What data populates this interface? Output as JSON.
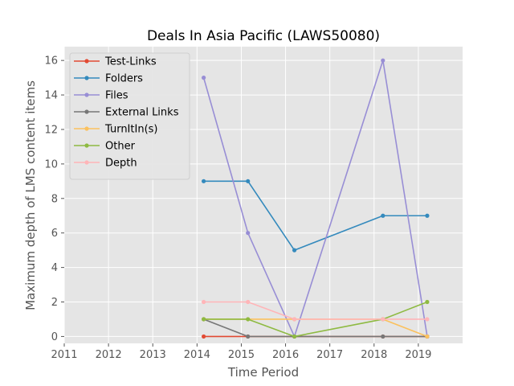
{
  "chart_data": {
    "type": "line",
    "title": "Deals In Asia Pacific (LAWS50080)",
    "xlabel": "Time Period",
    "ylabel": "Maximum depth of LMS content items",
    "xlim": [
      2011,
      2020
    ],
    "ylim": [
      -0.4,
      16.8
    ],
    "xticks": [
      "2011",
      "2012",
      "2013",
      "2014",
      "2015",
      "2016",
      "2017",
      "2018",
      "2019"
    ],
    "yticks": [
      "0",
      "2",
      "4",
      "6",
      "8",
      "10",
      "12",
      "14",
      "16"
    ],
    "grid": true,
    "legend_position": "top-left",
    "x": [
      2014.15,
      2015.15,
      2016.2,
      2018.2,
      2019.2
    ],
    "series": [
      {
        "name": "Test-Links",
        "color": "#E24A33",
        "points": [
          [
            2014.15,
            0
          ],
          [
            2015.15,
            0
          ],
          [
            2016.2,
            0
          ],
          [
            2018.2,
            0
          ],
          [
            2019.2,
            0
          ]
        ]
      },
      {
        "name": "Folders",
        "color": "#348ABD",
        "points": [
          [
            2014.15,
            9
          ],
          [
            2015.15,
            9
          ],
          [
            2016.2,
            5
          ],
          [
            2018.2,
            7
          ],
          [
            2019.2,
            7
          ]
        ]
      },
      {
        "name": "Files",
        "color": "#988ED5",
        "points": [
          [
            2014.15,
            15
          ],
          [
            2015.15,
            6
          ],
          [
            2016.2,
            0
          ],
          [
            2018.2,
            16
          ],
          [
            2019.2,
            0
          ]
        ]
      },
      {
        "name": "External Links",
        "color": "#777777",
        "points": [
          [
            2014.15,
            1
          ],
          [
            2015.15,
            0
          ],
          [
            2016.2,
            0
          ],
          [
            2018.2,
            0
          ],
          [
            2019.2,
            0
          ]
        ]
      },
      {
        "name": "TurnItIn(s)",
        "color": "#FBC15E",
        "points": [
          [
            2014.15,
            1
          ],
          [
            2015.15,
            1
          ],
          [
            2016.2,
            1
          ],
          [
            2018.2,
            1
          ],
          [
            2019.2,
            0
          ]
        ]
      },
      {
        "name": "Other",
        "color": "#8EBA42",
        "points": [
          [
            2014.15,
            1
          ],
          [
            2015.15,
            1
          ],
          [
            2016.2,
            0
          ],
          [
            2018.2,
            1
          ],
          [
            2019.2,
            2
          ]
        ]
      },
      {
        "name": "Depth",
        "color": "#FFB5B8",
        "points": [
          [
            2014.15,
            2
          ],
          [
            2015.15,
            2
          ],
          [
            2016.2,
            1
          ],
          [
            2018.2,
            1
          ],
          [
            2019.2,
            1
          ]
        ]
      }
    ]
  }
}
